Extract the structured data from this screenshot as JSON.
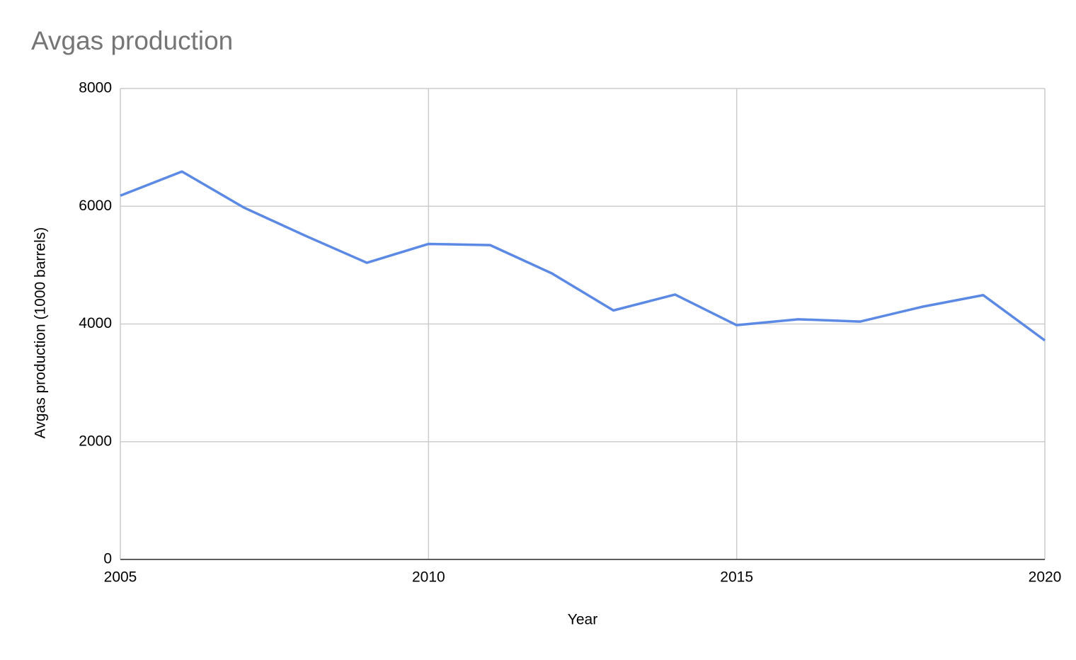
{
  "chart_data": {
    "type": "line",
    "title": "Avgas production",
    "x_label": "Year",
    "y_label": "Avgas production (1000 barrels)",
    "x": [
      2005,
      2006,
      2007,
      2008,
      2009,
      2010,
      2011,
      2012,
      2013,
      2014,
      2015,
      2016,
      2017,
      2018,
      2019,
      2020
    ],
    "series": [
      {
        "name": "Avgas production",
        "color": "#5b89e3",
        "values": [
          6180,
          6590,
          5980,
          5500,
          5040,
          5360,
          5340,
          4860,
          4230,
          4500,
          3980,
          4080,
          4040,
          4290,
          4490,
          3720
        ]
      }
    ],
    "xlim": [
      2005,
      2020
    ],
    "xticks": [
      2005,
      2010,
      2015,
      2020
    ],
    "ylim": [
      0,
      8000
    ],
    "yticks": [
      0,
      2000,
      4000,
      6000,
      8000
    ],
    "grid": true
  }
}
